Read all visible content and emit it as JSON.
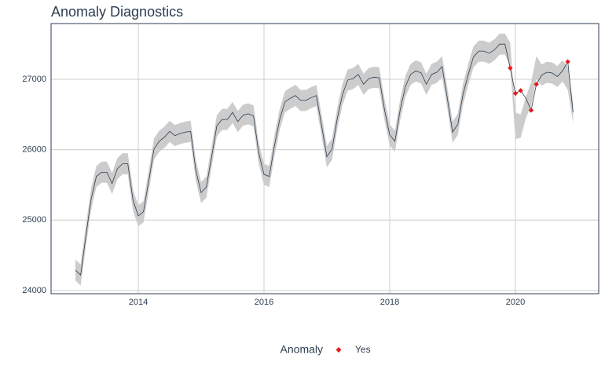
{
  "chart_data": {
    "type": "line",
    "title": "Anomaly Diagnostics",
    "x": [
      2013.0,
      2013.083,
      2013.167,
      2013.25,
      2013.333,
      2013.417,
      2013.5,
      2013.583,
      2013.667,
      2013.75,
      2013.833,
      2013.917,
      2014.0,
      2014.083,
      2014.167,
      2014.25,
      2014.333,
      2014.417,
      2014.5,
      2014.583,
      2014.667,
      2014.75,
      2014.833,
      2014.917,
      2015.0,
      2015.083,
      2015.167,
      2015.25,
      2015.333,
      2015.417,
      2015.5,
      2015.583,
      2015.667,
      2015.75,
      2015.833,
      2015.917,
      2016.0,
      2016.083,
      2016.167,
      2016.25,
      2016.333,
      2016.417,
      2016.5,
      2016.583,
      2016.667,
      2016.75,
      2016.833,
      2016.917,
      2017.0,
      2017.083,
      2017.167,
      2017.25,
      2017.333,
      2017.417,
      2017.5,
      2017.583,
      2017.667,
      2017.75,
      2017.833,
      2017.917,
      2018.0,
      2018.083,
      2018.167,
      2018.25,
      2018.333,
      2018.417,
      2018.5,
      2018.583,
      2018.667,
      2018.75,
      2018.833,
      2018.917,
      2019.0,
      2019.083,
      2019.167,
      2019.25,
      2019.333,
      2019.417,
      2019.5,
      2019.583,
      2019.667,
      2019.75,
      2019.833,
      2019.917,
      2020.0,
      2020.083,
      2020.167,
      2020.25,
      2020.333,
      2020.417,
      2020.5,
      2020.583,
      2020.667,
      2020.75,
      2020.833,
      2020.917
    ],
    "values": [
      24290,
      24220,
      24780,
      25300,
      25620,
      25680,
      25680,
      25520,
      25730,
      25800,
      25800,
      25280,
      25060,
      25120,
      25560,
      26010,
      26120,
      26180,
      26260,
      26200,
      26230,
      26250,
      26260,
      25700,
      25390,
      25470,
      25900,
      26340,
      26430,
      26430,
      26530,
      26400,
      26490,
      26510,
      26480,
      25950,
      25650,
      25620,
      26060,
      26430,
      26680,
      26730,
      26770,
      26700,
      26700,
      26740,
      26770,
      26340,
      25900,
      26010,
      26450,
      26790,
      26990,
      27010,
      27070,
      26930,
      27010,
      27030,
      27020,
      26570,
      26210,
      26120,
      26570,
      26900,
      27070,
      27120,
      27090,
      26930,
      27070,
      27100,
      27180,
      26730,
      26250,
      26360,
      26790,
      27070,
      27320,
      27400,
      27400,
      27370,
      27420,
      27500,
      27500,
      27160,
      26800,
      26840,
      26730,
      26560,
      26930,
      27060,
      27100,
      27090,
      27040,
      27120,
      27250,
      26530
    ],
    "color": "#2c3e50",
    "band": {
      "color": "#cccccc",
      "lower": [
        24140,
        24070,
        24630,
        25150,
        25470,
        25530,
        25530,
        25370,
        25580,
        25650,
        25650,
        25130,
        24910,
        24970,
        25410,
        25860,
        25970,
        26030,
        26110,
        26050,
        26080,
        26100,
        26110,
        25550,
        25240,
        25320,
        25750,
        26190,
        26280,
        26280,
        26380,
        26250,
        26340,
        26360,
        26330,
        25800,
        25500,
        25470,
        25910,
        26280,
        26530,
        26580,
        26620,
        26550,
        26550,
        26590,
        26620,
        26190,
        25750,
        25860,
        26300,
        26640,
        26840,
        26860,
        26920,
        26780,
        26860,
        26880,
        26870,
        26420,
        26060,
        25970,
        26420,
        26750,
        26920,
        26970,
        26940,
        26780,
        26920,
        26950,
        27030,
        26580,
        26100,
        26210,
        26640,
        26920,
        27170,
        27250,
        27250,
        27220,
        27270,
        27350,
        27350,
        27190,
        26150,
        26170,
        26450,
        26620,
        27000,
        26910,
        26950,
        26940,
        26890,
        26970,
        26850,
        26380
      ],
      "upper": [
        24440,
        24370,
        24930,
        25450,
        25770,
        25830,
        25830,
        25670,
        25880,
        25950,
        25950,
        25430,
        25210,
        25270,
        25710,
        26160,
        26270,
        26330,
        26410,
        26350,
        26380,
        26400,
        26410,
        25850,
        25540,
        25620,
        26050,
        26490,
        26580,
        26580,
        26680,
        26550,
        26640,
        26660,
        26630,
        26100,
        25800,
        25770,
        26210,
        26580,
        26830,
        26880,
        26920,
        26850,
        26850,
        26890,
        26920,
        26490,
        26050,
        26160,
        26600,
        26940,
        27140,
        27160,
        27220,
        27080,
        27160,
        27180,
        27170,
        26720,
        26360,
        26270,
        26720,
        27050,
        27220,
        27270,
        27240,
        27080,
        27220,
        27250,
        27330,
        26880,
        26400,
        26510,
        26940,
        27220,
        27470,
        27550,
        27550,
        27520,
        27570,
        27650,
        27650,
        27520,
        26530,
        26500,
        26750,
        26960,
        27330,
        27210,
        27250,
        27240,
        27190,
        27270,
        27180,
        26680
      ]
    },
    "anomalies": {
      "name": "Yes",
      "color": "#e31a1c",
      "x": [
        2019.917,
        2020.0,
        2020.083,
        2020.25,
        2020.333,
        2020.833
      ],
      "values": [
        27160,
        26800,
        26840,
        26560,
        26930,
        27250
      ]
    },
    "legend_title": "Anomaly",
    "xlim": [
      2012.6125,
      2021.325
    ],
    "xticks": [
      2014,
      2016,
      2018,
      2020
    ],
    "ylim": [
      23955,
      27792
    ],
    "yticks": [
      24000,
      25000,
      26000,
      27000
    ],
    "grid": true
  }
}
